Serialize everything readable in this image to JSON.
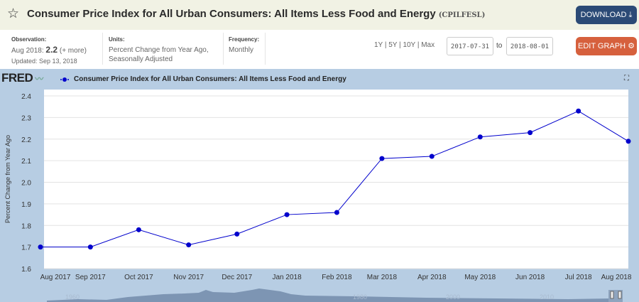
{
  "header": {
    "title": "Consumer Price Index for All Urban Consumers: All Items Less Food and Energy",
    "code": "(CPILFESL)",
    "download_label": "DOWNLOAD",
    "edit_label": "EDIT GRAPH"
  },
  "meta": {
    "observation_label": "Observation:",
    "observation_date": "Aug 2018:",
    "observation_value": "2.2",
    "more": "(+ more)",
    "updated": "Updated: Sep 13, 2018",
    "units_label": "Units:",
    "units_line1": "Percent Change from Year Ago,",
    "units_line2": "Seasonally Adjusted",
    "frequency_label": "Frequency:",
    "frequency": "Monthly"
  },
  "range": {
    "options": [
      "1Y",
      "5Y",
      "10Y",
      "Max"
    ],
    "start": "2017-07-31",
    "to": "to",
    "end": "2018-08-01"
  },
  "logo": "FRED",
  "chart_data": {
    "type": "line",
    "legend": "Consumer Price Index for All Urban Consumers: All Items Less Food and Energy",
    "ylabel": "Percent Change from Year Ago",
    "ylim": [
      1.6,
      2.4
    ],
    "yticks": [
      "1.6",
      "1.7",
      "1.8",
      "1.9",
      "2.0",
      "2.1",
      "2.2",
      "2.3",
      "2.4"
    ],
    "x": [
      "2017-08-01",
      "2017-09-01",
      "2017-10-01",
      "2017-11-01",
      "2017-12-01",
      "2018-01-01",
      "2018-02-01",
      "2018-03-01",
      "2018-04-01",
      "2018-05-01",
      "2018-06-01",
      "2018-07-01",
      "2018-08-01"
    ],
    "xticks": [
      "Aug 2017",
      "Sep 2017",
      "Oct 2017",
      "Nov 2017",
      "Dec 2017",
      "Jan 2018",
      "Feb 2018",
      "Mar 2018",
      "Apr 2018",
      "May 2018",
      "Jun 2018",
      "Jul 2018",
      "Aug 2018"
    ],
    "values": [
      1.7,
      1.7,
      1.78,
      1.71,
      1.76,
      1.85,
      1.86,
      2.11,
      2.12,
      2.21,
      2.23,
      2.33,
      2.19
    ],
    "grid": true,
    "line_color": "#0000cc",
    "navigator_labels": [
      "1960",
      "1980",
      "2000",
      "2010"
    ]
  }
}
